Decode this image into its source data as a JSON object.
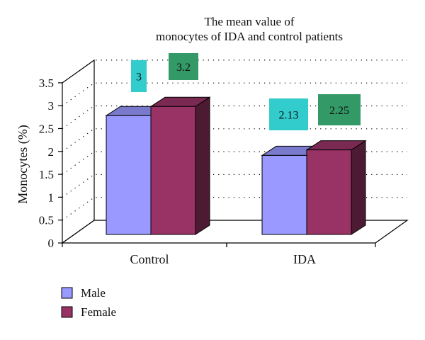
{
  "chart_data": {
    "type": "bar",
    "title_lines": [
      "The mean value of",
      "monocytes of IDA and control patients"
    ],
    "xlabel": "",
    "ylabel": "Monocytes (%)",
    "categories": [
      "Control",
      "IDA"
    ],
    "ylim": [
      0,
      3.5
    ],
    "yticks": [
      "0",
      "0.5",
      "1",
      "1.5",
      "2",
      "2.5",
      "3",
      "3.5"
    ],
    "grid": true,
    "legend_position": "bottom-left",
    "series": [
      {
        "name": "Male",
        "values": [
          3,
          2.13
        ],
        "labels": [
          "3",
          "2.13"
        ],
        "color": "#9999ff",
        "label_box_color": "#33cccc"
      },
      {
        "name": "Female",
        "values": [
          3.2,
          2.25
        ],
        "labels": [
          "3.2",
          "2.25"
        ],
        "color": "#993366",
        "label_box_color": "#339966"
      }
    ]
  }
}
